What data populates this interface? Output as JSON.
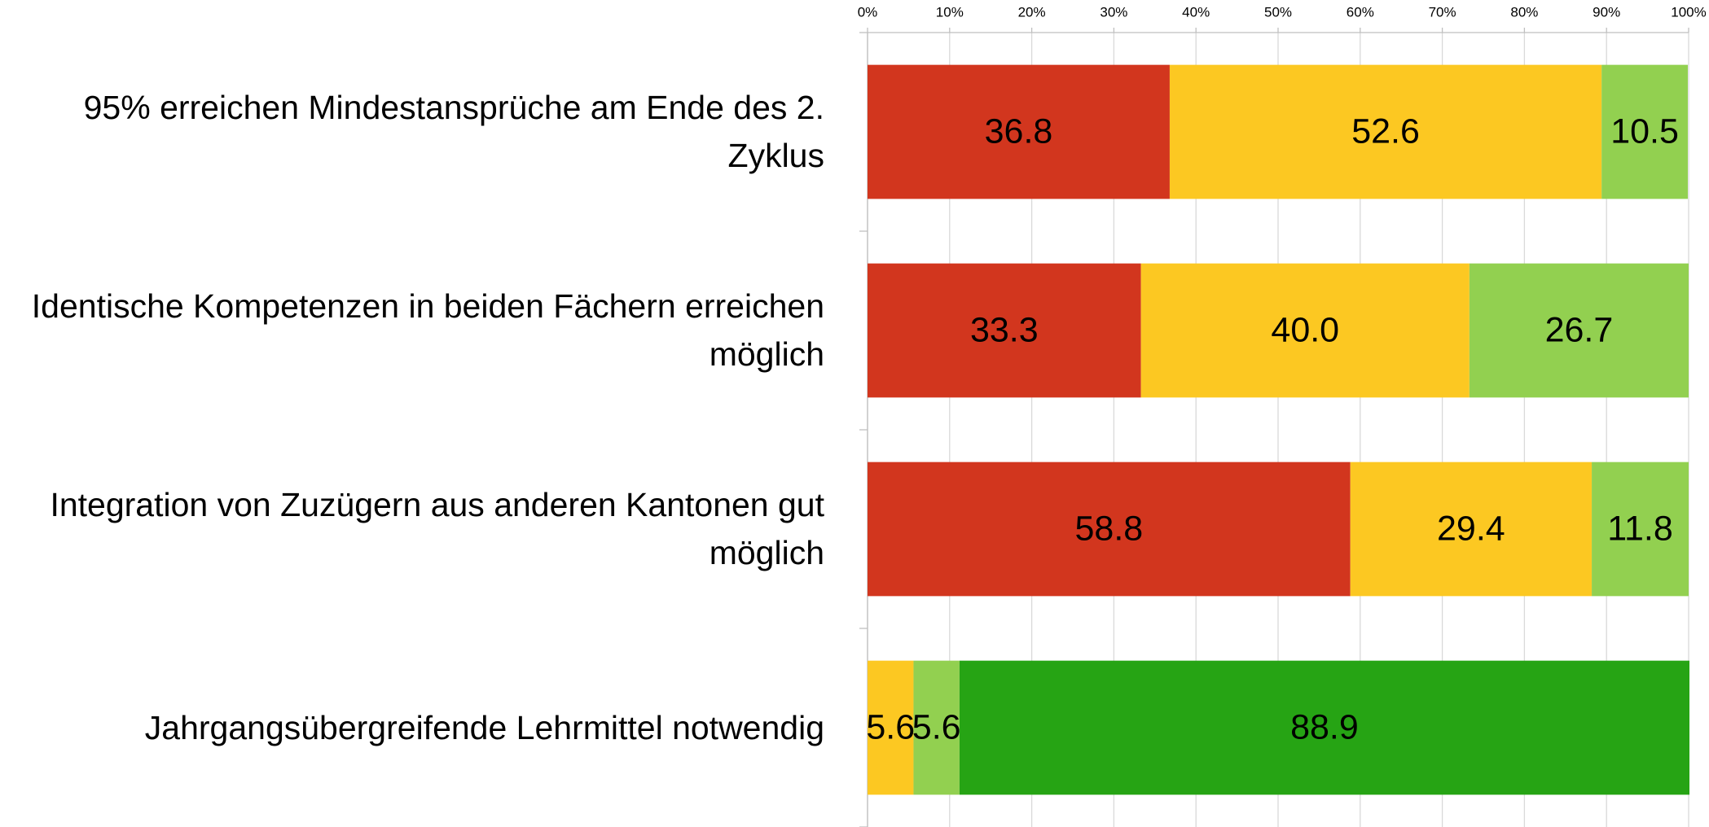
{
  "chart_data": {
    "type": "stacked_barh",
    "categories": [
      "95% erreichen Mindestansprüche am Ende des 2. Zyklus",
      "Identische Kompetenzen in beiden Fächern erreichen möglich",
      "Integration von Zuzügern aus anderen Kantonen gut möglich",
      "Jahrgangsübergreifende Lehrmittel notwendig"
    ],
    "series": [
      {
        "color": "#d2361e",
        "values": [
          36.8,
          33.3,
          58.8,
          null
        ],
        "value_labels": [
          "36.8",
          "33.3",
          "58.8",
          null
        ]
      },
      {
        "color": "#fcc822",
        "values": [
          52.6,
          40.0,
          29.4,
          5.6
        ],
        "value_labels": [
          "52.6",
          "40.0",
          "29.4",
          "5.6"
        ]
      },
      {
        "color": "#92d050",
        "values": [
          10.5,
          26.7,
          11.8,
          5.6
        ],
        "value_labels": [
          "10.5",
          "26.7",
          "11.8",
          "5.6"
        ]
      },
      {
        "color": "#26a414",
        "values": [
          null,
          null,
          null,
          88.9
        ],
        "value_labels": [
          null,
          null,
          null,
          "88.9"
        ]
      }
    ],
    "xlim": [
      0,
      100
    ],
    "xticks": [
      {
        "value": 0,
        "label": "0%"
      },
      {
        "value": 10,
        "label": "10%"
      },
      {
        "value": 20,
        "label": "20%"
      },
      {
        "value": 30,
        "label": "30%"
      },
      {
        "value": 40,
        "label": "40%"
      },
      {
        "value": 50,
        "label": "50%"
      },
      {
        "value": 60,
        "label": "60%"
      },
      {
        "value": 70,
        "label": "70%"
      },
      {
        "value": 80,
        "label": "80%"
      },
      {
        "value": 90,
        "label": "90%"
      },
      {
        "value": 100,
        "label": "100%"
      }
    ],
    "grid": true
  }
}
